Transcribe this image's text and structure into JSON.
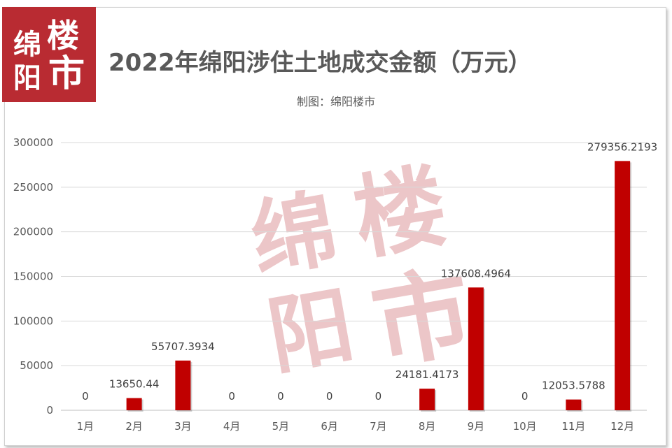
{
  "logo": {
    "chars": [
      "绵",
      "楼",
      "阳",
      "市"
    ]
  },
  "watermark": {
    "chars": [
      "绵",
      "楼",
      "阳",
      "市"
    ]
  },
  "chart_data": {
    "type": "bar",
    "title": "2022年绵阳涉住土地成交金额（万元）",
    "subtitle": "制图：绵阳楼市",
    "xlabel": "",
    "ylabel": "",
    "categories": [
      "1月",
      "2月",
      "3月",
      "4月",
      "5月",
      "6月",
      "7月",
      "8月",
      "9月",
      "10月",
      "11月",
      "12月"
    ],
    "values": [
      0,
      13650.44,
      55707.3934,
      0,
      0,
      0,
      0,
      24181.4173,
      137608.4964,
      0,
      12053.5788,
      279356.2193
    ],
    "data_labels": [
      "0",
      "13650.44",
      "55707.3934",
      "0",
      "0",
      "0",
      "0",
      "24181.4173",
      "137608.4964",
      "0",
      "12053.5788",
      "279356.2193"
    ],
    "ylim": [
      0,
      300000
    ],
    "yticks": [
      "0",
      "50000",
      "100000",
      "150000",
      "200000",
      "250000",
      "300000"
    ],
    "grid": true,
    "legend": "none",
    "bar_color": "#c00000",
    "grid_color": "#d9d9d9"
  }
}
